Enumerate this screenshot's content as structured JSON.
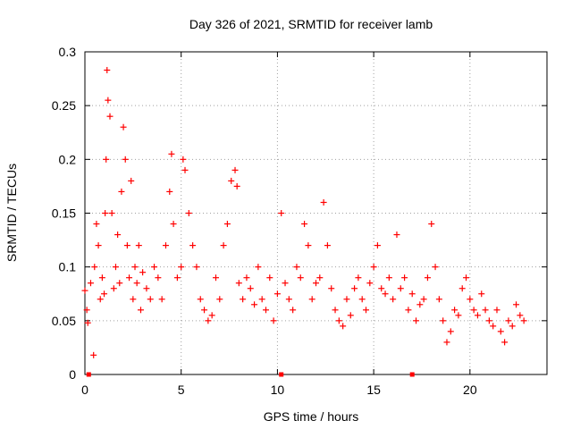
{
  "chart_data": {
    "type": "scatter",
    "title": "Day 326 of 2021, SRMTID for receiver lamb",
    "xlabel": "GPS time / hours",
    "ylabel": "SRMTID / TECUs",
    "xlim": [
      0,
      24
    ],
    "ylim": [
      0,
      0.3
    ],
    "xticks": [
      0,
      5,
      10,
      15,
      20
    ],
    "yticks": [
      0,
      0.05,
      0.1,
      0.15,
      0.2,
      0.25,
      0.3
    ],
    "xtick_labels": [
      "0",
      "5",
      "10",
      "15",
      "20"
    ],
    "ytick_labels": [
      "0",
      "0.05",
      "0.1",
      "0.15",
      "0.2",
      "0.25",
      "0.3"
    ],
    "grid": true,
    "marker": "+",
    "color": "#ff0000",
    "series": [
      {
        "name": "SRMTID",
        "x": [
          0.0,
          0.1,
          0.15,
          0.3,
          0.45,
          0.5,
          0.6,
          0.7,
          0.8,
          0.9,
          1.0,
          1.05,
          1.1,
          1.15,
          1.2,
          1.3,
          1.4,
          1.5,
          1.6,
          1.7,
          1.8,
          1.9,
          2.0,
          2.1,
          2.2,
          2.3,
          2.4,
          2.5,
          2.6,
          2.7,
          2.8,
          2.9,
          3.0,
          3.2,
          3.4,
          3.6,
          3.8,
          4.0,
          4.2,
          4.4,
          4.5,
          4.6,
          4.8,
          5.0,
          5.1,
          5.2,
          5.4,
          5.6,
          5.8,
          6.0,
          6.2,
          6.4,
          6.6,
          6.8,
          7.0,
          7.2,
          7.4,
          7.6,
          7.8,
          7.9,
          8.0,
          8.2,
          8.4,
          8.6,
          8.8,
          9.0,
          9.2,
          9.4,
          9.6,
          9.8,
          10.0,
          10.2,
          10.4,
          10.6,
          10.8,
          11.0,
          11.2,
          11.4,
          11.6,
          11.8,
          12.0,
          12.2,
          12.4,
          12.6,
          12.8,
          13.0,
          13.2,
          13.4,
          13.6,
          13.8,
          14.0,
          14.2,
          14.4,
          14.6,
          14.8,
          15.0,
          15.2,
          15.4,
          15.6,
          15.8,
          16.0,
          16.2,
          16.4,
          16.6,
          16.8,
          17.0,
          17.2,
          17.4,
          17.6,
          17.8,
          18.0,
          18.2,
          18.4,
          18.6,
          18.8,
          19.0,
          19.2,
          19.4,
          19.6,
          19.8,
          20.0,
          20.2,
          20.4,
          20.6,
          20.8,
          21.0,
          21.2,
          21.4,
          21.6,
          21.8,
          22.0,
          22.2,
          22.4,
          22.6,
          22.8
        ],
        "y": [
          0.078,
          0.06,
          0.048,
          0.085,
          0.018,
          0.1,
          0.14,
          0.12,
          0.07,
          0.09,
          0.075,
          0.15,
          0.2,
          0.283,
          0.255,
          0.24,
          0.15,
          0.08,
          0.1,
          0.13,
          0.085,
          0.17,
          0.23,
          0.2,
          0.12,
          0.09,
          0.18,
          0.07,
          0.1,
          0.085,
          0.12,
          0.06,
          0.095,
          0.08,
          0.07,
          0.1,
          0.09,
          0.07,
          0.12,
          0.17,
          0.205,
          0.14,
          0.09,
          0.1,
          0.2,
          0.19,
          0.15,
          0.12,
          0.1,
          0.07,
          0.06,
          0.05,
          0.055,
          0.09,
          0.07,
          0.12,
          0.14,
          0.18,
          0.19,
          0.175,
          0.085,
          0.07,
          0.09,
          0.08,
          0.065,
          0.1,
          0.07,
          0.06,
          0.09,
          0.05,
          0.075,
          0.15,
          0.085,
          0.07,
          0.06,
          0.1,
          0.09,
          0.14,
          0.12,
          0.07,
          0.085,
          0.09,
          0.16,
          0.12,
          0.08,
          0.06,
          0.05,
          0.045,
          0.07,
          0.055,
          0.08,
          0.09,
          0.07,
          0.06,
          0.085,
          0.1,
          0.12,
          0.08,
          0.075,
          0.09,
          0.07,
          0.13,
          0.08,
          0.09,
          0.06,
          0.075,
          0.05,
          0.065,
          0.07,
          0.09,
          0.14,
          0.1,
          0.07,
          0.05,
          0.03,
          0.04,
          0.06,
          0.055,
          0.08,
          0.09,
          0.07,
          0.06,
          0.055,
          0.075,
          0.06,
          0.05,
          0.045,
          0.06,
          0.04,
          0.03,
          0.05,
          0.045,
          0.065,
          0.055,
          0.05
        ]
      }
    ],
    "marks_on_axis_x": [
      0.2,
      10.2,
      17.0
    ]
  }
}
